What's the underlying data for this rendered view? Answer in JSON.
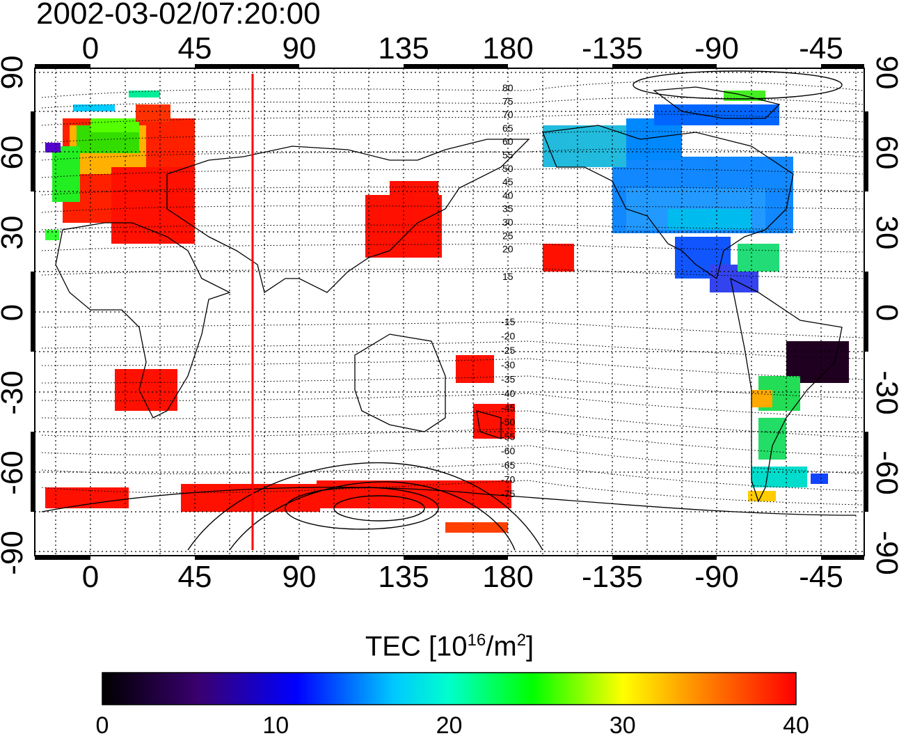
{
  "title": "2002-03-02/07:20:00",
  "map": {
    "top_lon_ticks": [
      "0",
      "45",
      "90",
      "135",
      "180",
      "-135",
      "-90",
      "-45"
    ],
    "bottom_lon_ticks": [
      "0",
      "45",
      "90",
      "135",
      "180",
      "-135",
      "-90",
      "-45"
    ],
    "left_lat_ticks": [
      "90",
      "60",
      "30",
      "0",
      "-30",
      "-60",
      "-90"
    ],
    "right_lat_ticks": [
      "90",
      "60",
      "30",
      "0",
      "-30",
      "-60",
      "-90"
    ],
    "marker_longitude": 70,
    "contour_labels_north": [
      "80",
      "75",
      "70",
      "65",
      "60",
      "55",
      "50",
      "45",
      "40",
      "35",
      "30",
      "25",
      "20",
      "15"
    ],
    "contour_labels_south": [
      "-15",
      "-20",
      "-25",
      "-30",
      "-35",
      "-40",
      "-45",
      "-50",
      "-55",
      "-60",
      "-65",
      "-70",
      "-75"
    ],
    "colors": {
      "frame": "#000000",
      "grid": "#000000",
      "marker": "#ff0000",
      "coast": "#000000"
    }
  },
  "colorbar": {
    "title_main": "TEC  [10",
    "title_exp": "16",
    "title_mid": "/m",
    "title_exp2": "2",
    "title_end": "]",
    "min": 0,
    "max": 40,
    "tick_labels": [
      "0",
      "10",
      "20",
      "30",
      "40"
    ],
    "stops": [
      "#000000",
      "#3a0070",
      "#0000ff",
      "#00ffff",
      "#00ff00",
      "#ffff00",
      "#ff8000",
      "#ff0000"
    ]
  }
}
